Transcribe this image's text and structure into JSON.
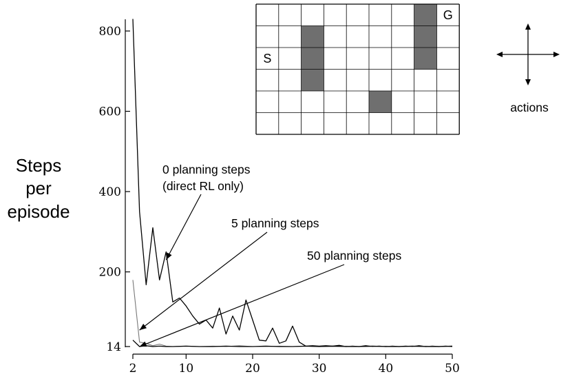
{
  "chart_data": {
    "type": "line",
    "title": "",
    "xlabel": "",
    "ylabel": [
      "Steps",
      "per",
      "episode"
    ],
    "xlim": [
      2,
      50
    ],
    "ylim": [
      14,
      800
    ],
    "x_ticks": [
      2,
      10,
      20,
      30,
      40,
      50
    ],
    "y_ticks": [
      14,
      200,
      400,
      600,
      800
    ],
    "series": [
      {
        "name": "0 planning steps (direct RL only)",
        "color": "#000000",
        "x": [
          2,
          3,
          4,
          5,
          6,
          7,
          8,
          9,
          10,
          11,
          12,
          13,
          14,
          15,
          16,
          17,
          18,
          19,
          20,
          21,
          22,
          23,
          24,
          25,
          26,
          27,
          28,
          29,
          30,
          31,
          32,
          33,
          34,
          35,
          36,
          37,
          38,
          39,
          40,
          41,
          42,
          43,
          44,
          45,
          46,
          47,
          48,
          49,
          50
        ],
        "y": [
          830,
          350,
          168,
          310,
          180,
          250,
          125,
          135,
          115,
          90,
          70,
          80,
          60,
          110,
          45,
          90,
          55,
          130,
          80,
          30,
          28,
          60,
          22,
          28,
          65,
          25,
          15,
          16,
          15,
          16,
          15,
          17,
          14,
          15,
          14,
          16,
          14,
          15,
          14,
          15,
          14,
          15,
          14,
          16,
          14,
          15,
          14,
          15,
          14
        ]
      },
      {
        "name": "5 planning steps",
        "color": "#777777",
        "x": [
          2,
          3,
          4,
          5,
          6,
          7,
          8,
          10,
          12,
          14,
          16,
          18,
          20,
          22,
          24,
          26,
          28,
          30,
          32,
          34,
          36,
          38,
          40,
          42,
          44,
          46,
          48,
          50
        ],
        "y": [
          180,
          25,
          22,
          16,
          20,
          15,
          14,
          15,
          14,
          15,
          14,
          16,
          14,
          14,
          15,
          14,
          15,
          14,
          14,
          15,
          14,
          14,
          15,
          14,
          14,
          15,
          14,
          15
        ]
      },
      {
        "name": "50 planning steps",
        "color": "#000000",
        "x": [
          2,
          3,
          4,
          5,
          6,
          7,
          8,
          10,
          12,
          14,
          16,
          18,
          20,
          22,
          24,
          26,
          28,
          30,
          32,
          34,
          36,
          38,
          40,
          42,
          44,
          46,
          48,
          50
        ],
        "y": [
          30,
          14,
          16,
          14,
          15,
          14,
          14,
          15,
          14,
          14,
          15,
          14,
          14,
          15,
          14,
          14,
          15,
          14,
          15,
          14,
          14,
          15,
          14,
          14,
          15,
          14,
          14,
          15
        ]
      }
    ],
    "annotations": [
      {
        "lines": [
          "0 planning steps",
          "(direct RL only)"
        ],
        "target_x": 7,
        "target_y": 230
      },
      {
        "lines": [
          "5 planning steps"
        ],
        "target_x": 3,
        "target_y": 55
      },
      {
        "lines": [
          "50 planning steps"
        ],
        "target_x": 3,
        "target_y": 14
      }
    ]
  },
  "maze": {
    "rows": 6,
    "cols": 9,
    "start_label": "S",
    "goal_label": "G",
    "start_cell": [
      2,
      0
    ],
    "goal_cell": [
      0,
      8
    ],
    "walls": [
      [
        1,
        2
      ],
      [
        2,
        2
      ],
      [
        3,
        2
      ],
      [
        0,
        7
      ],
      [
        1,
        7
      ],
      [
        2,
        7
      ],
      [
        4,
        5
      ]
    ],
    "wall_color": "#6f6f6f",
    "line_color": "#000000"
  },
  "actions_label": "actions"
}
